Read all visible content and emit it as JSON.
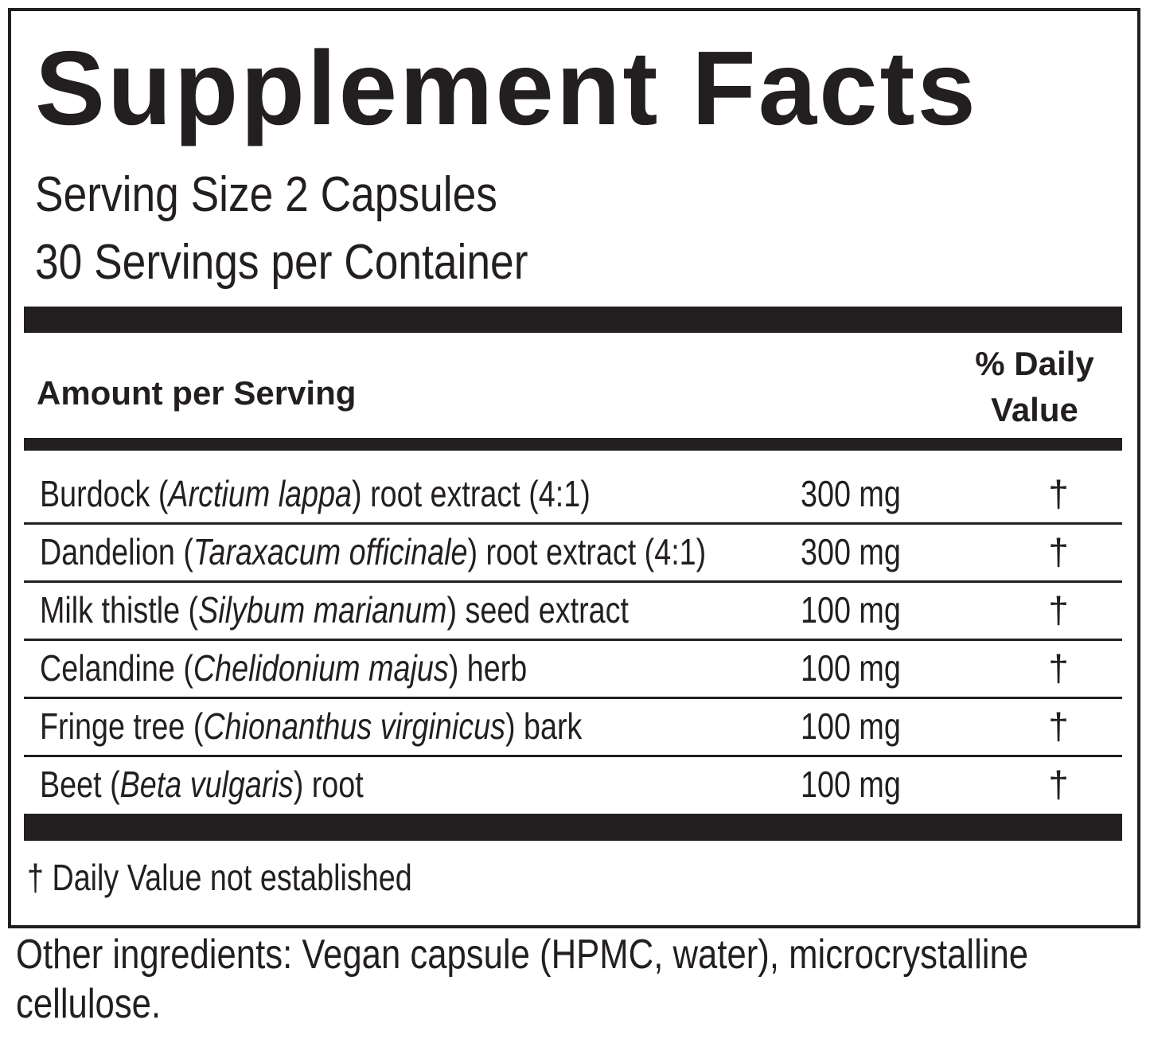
{
  "title": "Supplement Facts",
  "serving_size": "Serving Size 2 Capsules",
  "servings_per_container": "30 Servings per Container",
  "header": {
    "amount": "Amount per Serving",
    "daily_value": "% Daily Value"
  },
  "rows": [
    {
      "name_before": "Burdock (",
      "latin": "Arctium lappa",
      "name_after": ") root extract (4:1)",
      "amount": "300 mg",
      "daily_value": "†"
    },
    {
      "name_before": "Dandelion (",
      "latin": "Taraxacum officinale",
      "name_after": ") root extract (4:1)",
      "amount": "300 mg",
      "daily_value": "†"
    },
    {
      "name_before": "Milk thistle (",
      "latin": "Silybum marianum",
      "name_after": ") seed extract",
      "amount": "100 mg",
      "daily_value": "†"
    },
    {
      "name_before": "Celandine (",
      "latin": "Chelidonium majus",
      "name_after": ") herb",
      "amount": "100 mg",
      "daily_value": "†"
    },
    {
      "name_before": "Fringe tree (",
      "latin": "Chionanthus virginicus",
      "name_after": ") bark",
      "amount": "100 mg",
      "daily_value": "†"
    },
    {
      "name_before": "Beet (",
      "latin": "Beta vulgaris",
      "name_after": ") root",
      "amount": "100 mg",
      "daily_value": "†"
    }
  ],
  "footnote": "† Daily Value not established",
  "other_ingredients": "Other ingredients: Vegan capsule (HPMC, water), microcrystalline cellulose."
}
